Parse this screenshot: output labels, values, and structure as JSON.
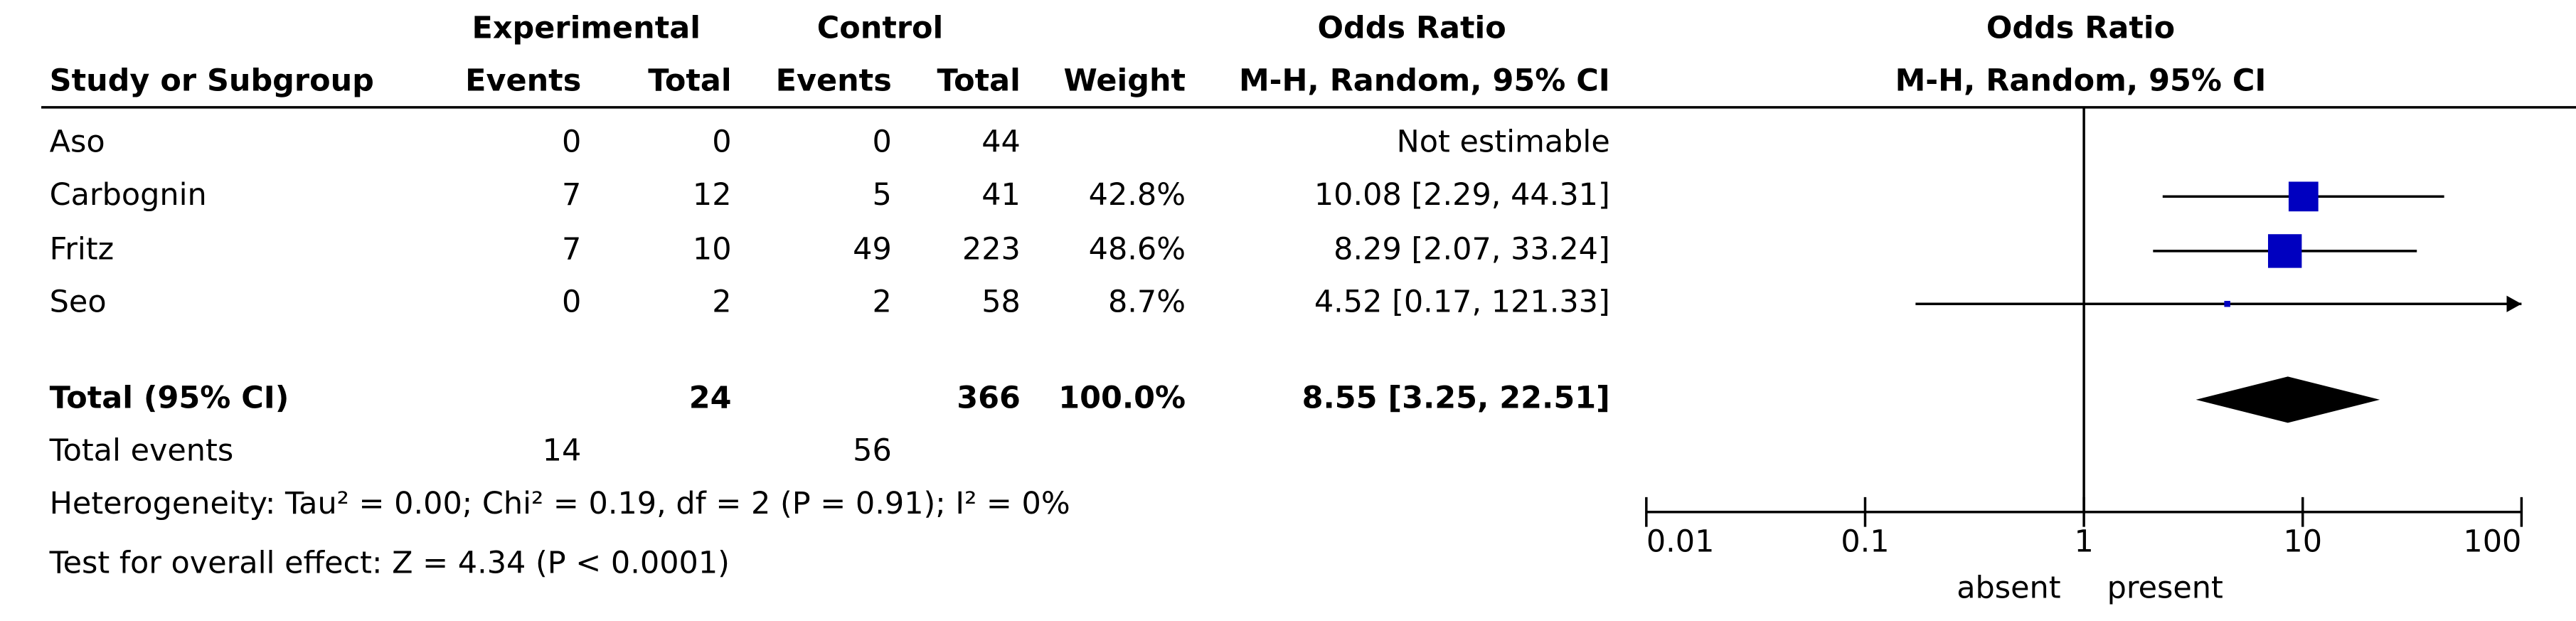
{
  "table": {
    "group_headers": [
      "Experimental",
      "Control",
      "Odds Ratio"
    ],
    "headers": [
      "Study or Subgroup",
      "Events",
      "Total",
      "Events",
      "Total",
      "Weight",
      "M-H, Random, 95% CI"
    ],
    "rows": [
      [
        "Aso",
        0,
        0,
        0,
        44,
        null,
        "Not estimable"
      ],
      [
        "Carbognin",
        7,
        12,
        5,
        41,
        "42.8%",
        "10.08 [2.29, 44.31]"
      ],
      [
        "Fritz",
        7,
        10,
        49,
        223,
        "48.6%",
        "8.29 [2.07, 33.24]"
      ],
      [
        "Seo",
        0,
        2,
        2,
        58,
        "8.7%",
        "4.52 [0.17, 121.33]"
      ],
      [
        "Total (95% CI)",
        null,
        24,
        null,
        366,
        "100.0%",
        "8.55 [3.25, 22.51]"
      ],
      [
        "Total events",
        14,
        null,
        56,
        null,
        null,
        null
      ]
    ],
    "footnotes": [
      "Heterogeneity: Tau² = 0.00; Chi² = 0.19, df = 2 (P = 0.91); I² = 0%",
      "Test for overall effect: Z = 4.34 (P < 0.0001)"
    ]
  },
  "chart_data": {
    "type": "forest",
    "title": "Odds Ratio",
    "subtitle": "M-H, Random, 95% CI",
    "values": [
      null,
      10.08,
      8.29,
      4.52
    ],
    "ci_low": [
      null,
      2.29,
      2.07,
      0.17
    ],
    "ci_high": [
      null,
      44.31,
      33.24,
      121.33
    ],
    "weights": [
      null,
      42.8,
      48.6,
      8.7
    ],
    "summary": {
      "value": 8.55,
      "ci_low": 3.25,
      "ci_high": 22.51
    },
    "color": "#0000c0",
    "summary_color": "#000000",
    "log_scale": true,
    "xlim": [
      0.01,
      100
    ],
    "xticks": [
      0.01,
      0.1,
      1,
      10,
      100
    ],
    "xlabel_left": "absent",
    "xlabel_right": "present"
  }
}
